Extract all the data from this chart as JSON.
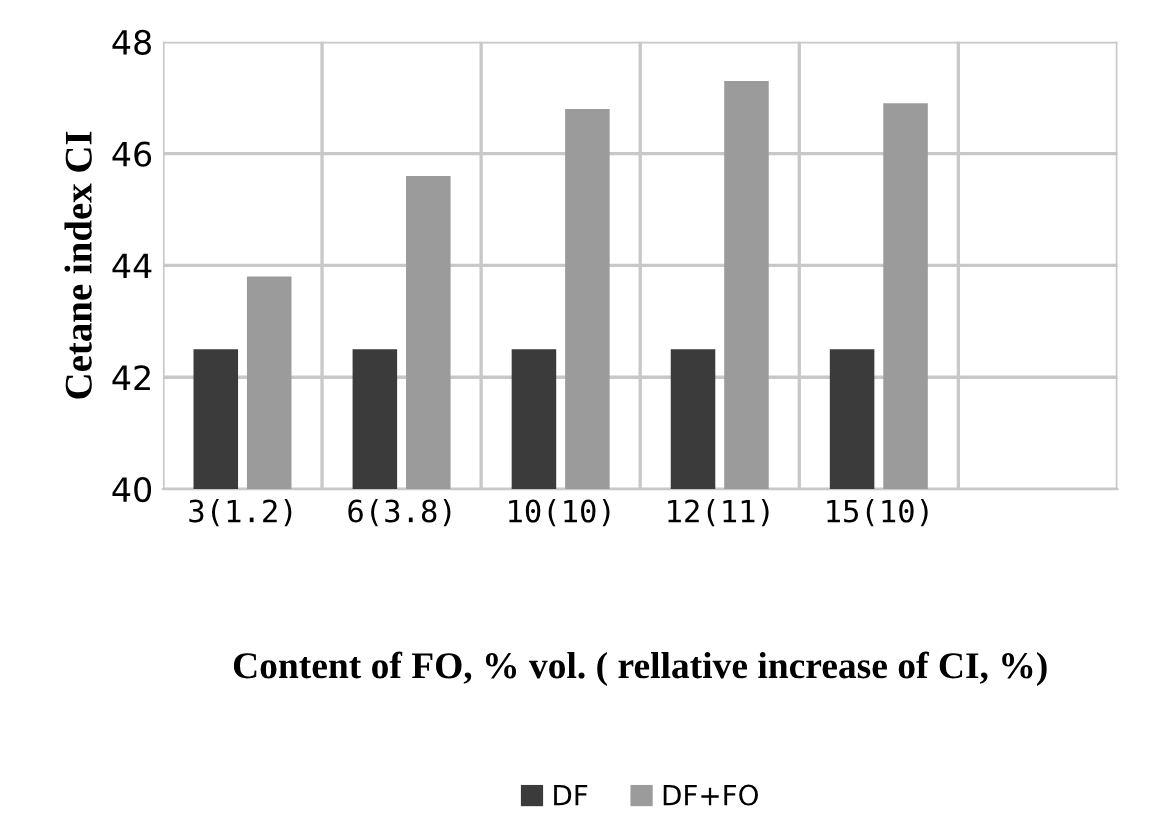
{
  "chart_data": {
    "type": "bar",
    "xlabel": "Content of FO, % vol. ( rellative increase of CI, %)",
    "ylabel": "Cetane index CI",
    "categories": [
      "3(1.2)",
      "6(3.8)",
      "10(10)",
      "12(11)",
      "15(10)",
      null
    ],
    "series": [
      {
        "name": "DF",
        "color": "#3b3b3b",
        "values": [
          42.5,
          42.5,
          42.5,
          42.5,
          42.5,
          null
        ]
      },
      {
        "name": "DF+FO",
        "color": "#9b9b9b",
        "values": [
          43.8,
          45.6,
          46.8,
          47.3,
          46.9,
          null
        ]
      }
    ],
    "ylim": [
      40,
      48
    ],
    "yticks": [
      40,
      42,
      44,
      46,
      48
    ],
    "grid": true,
    "legend": "bottom"
  }
}
